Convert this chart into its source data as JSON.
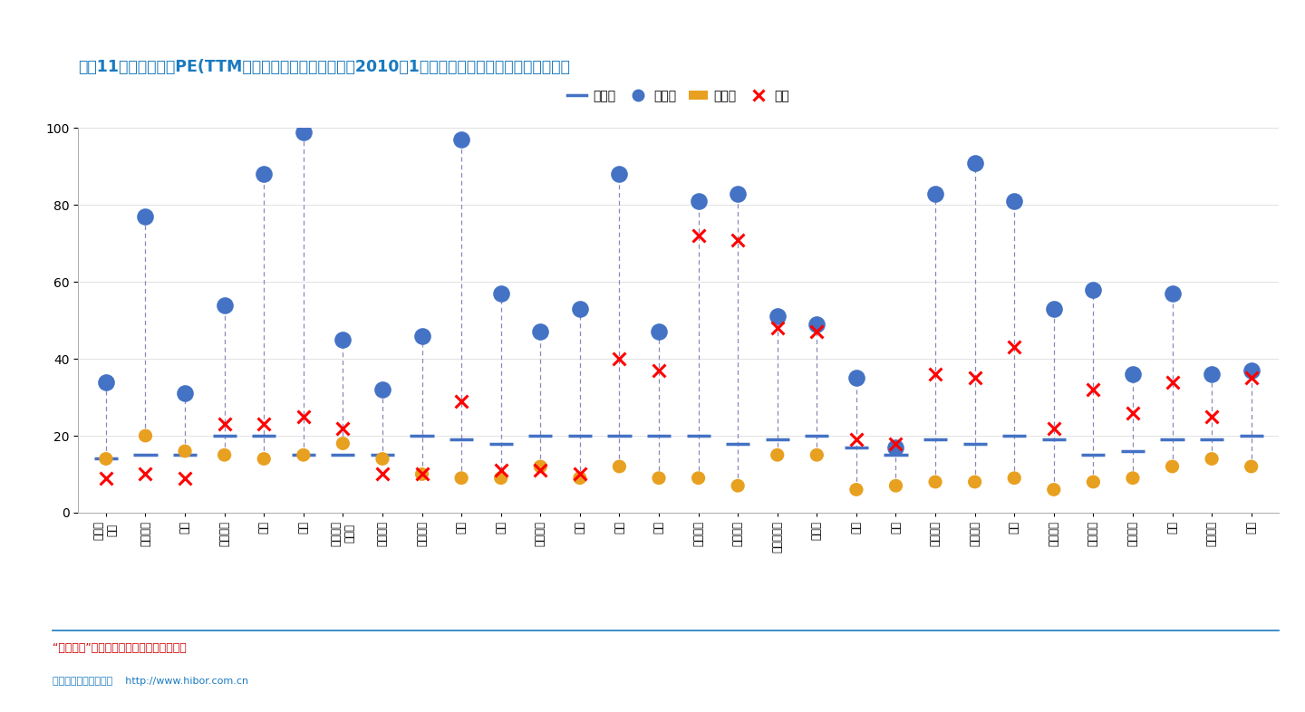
{
  "title": "图表11：重点级行业PE(TTM，整体法，剔除负值）（自2010年1月起，按所处分位数从低到高排序）",
  "categories": [
    "房地产\n开发",
    "高速公路",
    "酒店",
    "水泥制造",
    "中药",
    "钢铁",
    "环保工程\n及服务",
    "煤炭开采",
    "建筑装饰",
    "传媒",
    "造纸",
    "铁路运输",
    "保险",
    "港口",
    "电子",
    "医疗器械",
    "医疗服务",
    "汽车零部件",
    "计算机",
    "电力",
    "银行",
    "白色家电",
    "化学制药",
    "通信",
    "石油开采",
    "汽车整车",
    "饮料制造",
    "证券",
    "航空运输",
    "机场"
  ],
  "max_vals": [
    34,
    77,
    31,
    54,
    88,
    99,
    45,
    32,
    46,
    97,
    57,
    47,
    53,
    88,
    47,
    81,
    83,
    51,
    49,
    35,
    17,
    83,
    91,
    81,
    53,
    58,
    36,
    57,
    36,
    37
  ],
  "min_vals": [
    14,
    20,
    16,
    15,
    14,
    15,
    18,
    14,
    10,
    9,
    9,
    12,
    9,
    12,
    9,
    9,
    7,
    15,
    15,
    6,
    7,
    8,
    8,
    9,
    6,
    8,
    9,
    12,
    14,
    12
  ],
  "median_vals": [
    14,
    15,
    15,
    20,
    20,
    15,
    15,
    15,
    20,
    19,
    18,
    20,
    20,
    20,
    20,
    20,
    18,
    19,
    20,
    17,
    15,
    19,
    18,
    20,
    19,
    15,
    16,
    19,
    19,
    20
  ],
  "current_vals": [
    9,
    10,
    9,
    23,
    23,
    25,
    22,
    10,
    10,
    29,
    11,
    11,
    10,
    40,
    37,
    72,
    71,
    48,
    47,
    19,
    18,
    36,
    35,
    43,
    22,
    32,
    26,
    34,
    25,
    35
  ],
  "background_color": "#ffffff",
  "title_color": "#1a7abf",
  "median_color": "#4472C4",
  "max_color": "#4472C4",
  "min_color": "#E8A020",
  "current_color": "#FF0000",
  "dashed_line_color": "#8888BB",
  "ylim": [
    0,
    100
  ],
  "yticks": [
    0,
    20,
    40,
    60,
    80,
    100
  ],
  "legend_labels": [
    "中位数",
    "最大值",
    "最小值",
    "现值"
  ],
  "footer1": "“慧博资讯”专业的投资研究大数据分享平台",
  "footer2": "来源：国金证券研究所    http://www.hibor.com.cn"
}
